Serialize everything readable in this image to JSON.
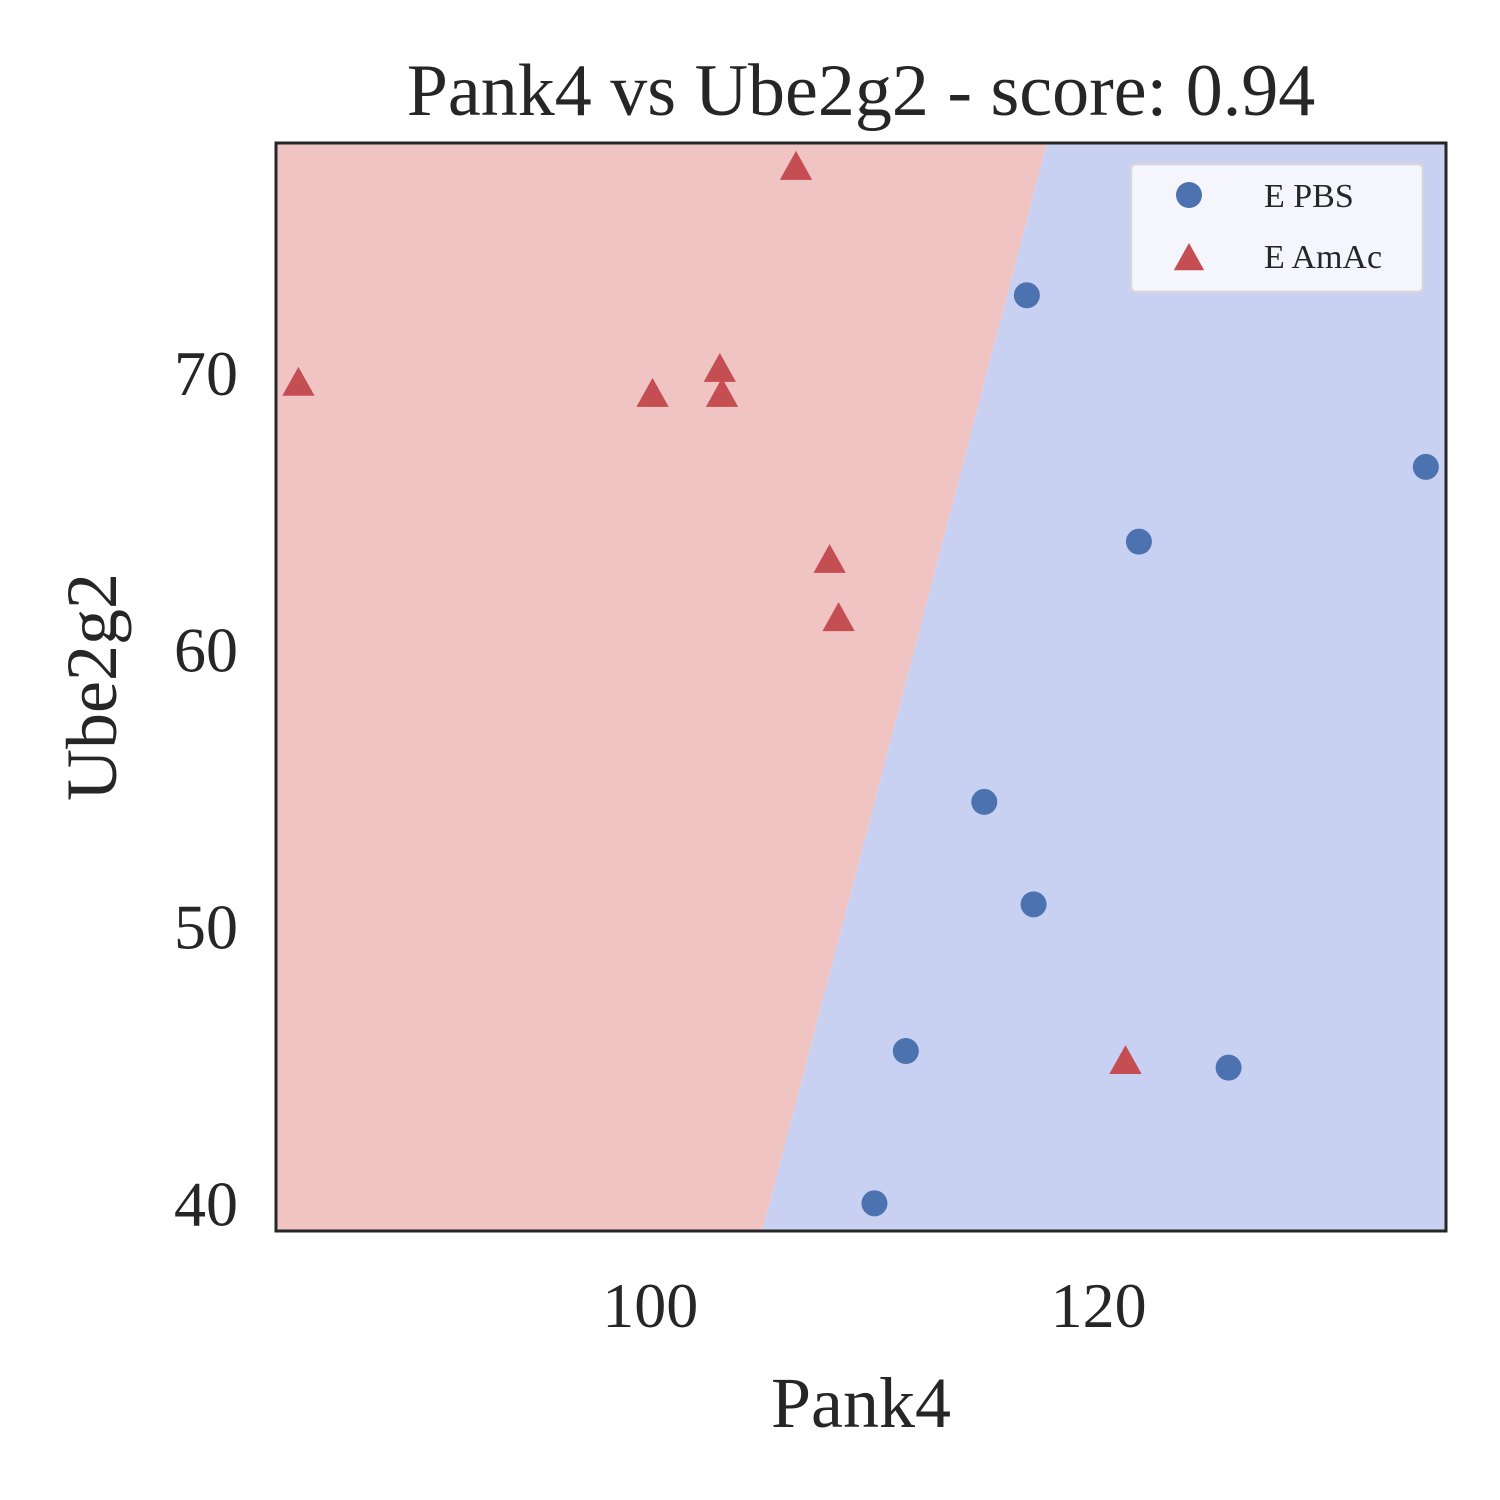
{
  "chart_data": {
    "type": "scatter",
    "title": "Pank4 vs Ube2g2 - score: 0.94",
    "xlabel": "Pank4",
    "ylabel": "Ube2g2",
    "xlim": [
      83.3,
      135.5
    ],
    "ylim": [
      39.0,
      78.3
    ],
    "xticks": [
      100,
      120
    ],
    "yticks": [
      40,
      50,
      60,
      70
    ],
    "grid": false,
    "legend_position": "top-right",
    "decision_boundary": {
      "points": [
        [
          105.0,
          39.0
        ],
        [
          117.7,
          78.3
        ]
      ],
      "left_region_color": "#efc4c3",
      "right_region_color": "#c9d1f2"
    },
    "series": [
      {
        "name": "E PBS",
        "marker": "circle",
        "color": "#4c72b0",
        "points": [
          [
            116.8,
            72.8
          ],
          [
            134.6,
            66.6
          ],
          [
            121.8,
            63.9
          ],
          [
            114.9,
            54.5
          ],
          [
            117.1,
            50.8
          ],
          [
            111.4,
            45.5
          ],
          [
            125.8,
            44.9
          ],
          [
            110.0,
            40.0
          ]
        ]
      },
      {
        "name": "E AmAc",
        "marker": "triangle",
        "color": "#c44e52",
        "points": [
          [
            106.5,
            77.4
          ],
          [
            84.3,
            69.6
          ],
          [
            103.1,
            70.1
          ],
          [
            100.1,
            69.2
          ],
          [
            103.2,
            69.2
          ],
          [
            108.0,
            63.2
          ],
          [
            108.4,
            61.1
          ],
          [
            121.2,
            45.1
          ]
        ]
      }
    ]
  }
}
